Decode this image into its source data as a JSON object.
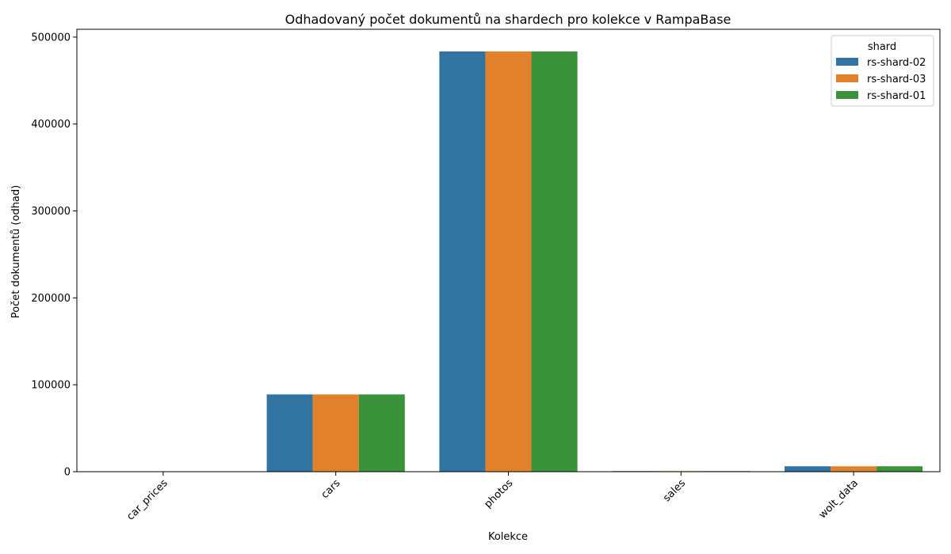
{
  "chart_data": {
    "type": "bar",
    "title": "Odhadovaný počet dokumentů na shardech pro kolekce v RampaBase",
    "xlabel": "Kolekce",
    "ylabel": "Počet dokumentů (odhad)",
    "categories": [
      "car_prices",
      "cars",
      "photos",
      "sales",
      "wolt_data"
    ],
    "series": [
      {
        "name": "rs-shard-02",
        "color": "#3274a1",
        "values": [
          0,
          88900,
          483500,
          700,
          6200
        ]
      },
      {
        "name": "rs-shard-03",
        "color": "#e1812c",
        "values": [
          0,
          88900,
          483500,
          700,
          6200
        ]
      },
      {
        "name": "rs-shard-01",
        "color": "#3a923a",
        "values": [
          0,
          88900,
          483500,
          700,
          6200
        ]
      }
    ],
    "yticks": [
      0,
      100000,
      200000,
      300000,
      400000,
      500000
    ],
    "ytick_labels": [
      "0",
      "100000",
      "200000",
      "300000",
      "400000",
      "500000"
    ],
    "ylim": [
      0,
      509000
    ],
    "legend": {
      "title": "shard",
      "position": "top-right"
    },
    "grid": false
  }
}
